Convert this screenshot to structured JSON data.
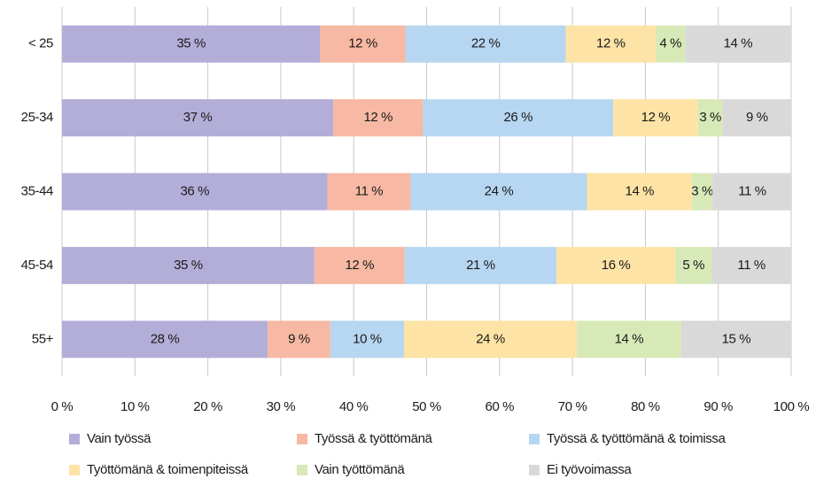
{
  "chart_data": {
    "type": "stacked_barh",
    "categories": [
      "< 25",
      "25-34",
      "35-44",
      "45-54",
      "55+"
    ],
    "series": [
      {
        "name": "Vain työssä",
        "color": "#b3aed8",
        "values": [
          35.4,
          37.2,
          36.4,
          34.6,
          28.2
        ],
        "value_labels": [
          "35 %",
          "37 %",
          "36 %",
          "35 %",
          "28 %"
        ]
      },
      {
        "name": "Työssä & työttömänä",
        "color": "#f7b9a3",
        "values": [
          11.7,
          12.3,
          11.4,
          12.4,
          8.6
        ],
        "value_labels": [
          "12 %",
          "12 %",
          "11 %",
          "12 %",
          "9 %"
        ]
      },
      {
        "name": "Työssä & työttömänä & toimissa",
        "color": "#b7d6f1",
        "values": [
          22.0,
          26.1,
          24.2,
          20.8,
          10.1
        ],
        "value_labels": [
          "22 %",
          "26 %",
          "24 %",
          "21 %",
          "10 %"
        ]
      },
      {
        "name": "Työttömänä & toimenpiteissä",
        "color": "#fde4a6",
        "values": [
          12.3,
          11.6,
          14.4,
          16.3,
          23.7
        ],
        "value_labels": [
          "12 %",
          "12 %",
          "14 %",
          "16 %",
          "24 %"
        ]
      },
      {
        "name": "Vain työttömänä",
        "color": "#d8e9b8",
        "values": [
          4.1,
          3.4,
          2.8,
          5.0,
          14.3
        ],
        "value_labels": [
          "4 %",
          "3 %",
          "3 %",
          "5 %",
          "14 %"
        ]
      },
      {
        "name": "Ei työvoimassa",
        "color": "#d9d9d9",
        "values": [
          14.4,
          9.4,
          10.9,
          10.9,
          15.1
        ],
        "value_labels": [
          "14 %",
          "9 %",
          "11 %",
          "11 %",
          "15 %"
        ]
      }
    ],
    "xlim": [
      0,
      100
    ],
    "xticks": [
      {
        "value": 0,
        "label": "0 %"
      },
      {
        "value": 10,
        "label": "10 %"
      },
      {
        "value": 20,
        "label": "20 %"
      },
      {
        "value": 30,
        "label": "30 %"
      },
      {
        "value": 40,
        "label": "40 %"
      },
      {
        "value": 50,
        "label": "50 %"
      },
      {
        "value": 60,
        "label": "60 %"
      },
      {
        "value": 70,
        "label": "70 %"
      },
      {
        "value": 80,
        "label": "80 %"
      },
      {
        "value": 90,
        "label": "90 %"
      },
      {
        "value": 100,
        "label": "100 %"
      }
    ],
    "grid": true,
    "legend": "bottom"
  }
}
